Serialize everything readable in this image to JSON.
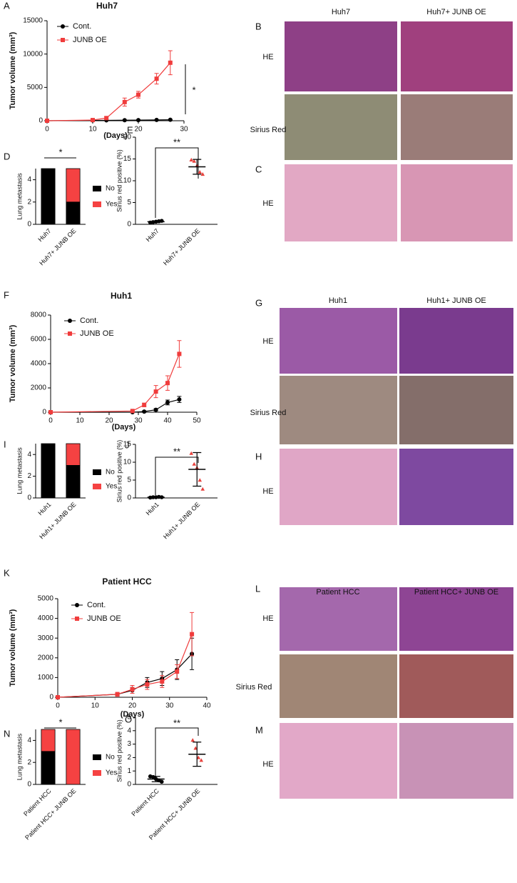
{
  "panel_letters": [
    "A",
    "B",
    "C",
    "D",
    "E",
    "F",
    "G",
    "H",
    "I",
    "J",
    "K",
    "L",
    "M",
    "N",
    "O"
  ],
  "histology": [
    {
      "columns": [
        "Huh7",
        "Huh7+ JUNB OE"
      ],
      "rows": [
        "HE",
        "Sirius Red"
      ]
    },
    {
      "rows": [
        "HE"
      ]
    },
    {
      "columns": [
        "Huh1",
        "Huh1+ JUNB OE"
      ],
      "rows": [
        "HE",
        "Sirius Red"
      ]
    },
    {
      "rows": [
        "HE"
      ]
    },
    {
      "columns": [
        "Patient HCC",
        "Patient HCC+ JUNB OE"
      ],
      "rows": [
        "HE",
        "Sirius Red"
      ]
    },
    {
      "rows": [
        "HE"
      ]
    }
  ],
  "chart_data": [
    {
      "type": "line",
      "title": "Huh7",
      "xlabel": "(Days)",
      "ylabel": "Tumor volume (mm³)",
      "annotation": "*",
      "xlim": [
        0,
        30
      ],
      "xticks": [
        0,
        10,
        20,
        30
      ],
      "ylim": [
        0,
        15000
      ],
      "yticks": [
        0,
        5000,
        10000,
        15000
      ],
      "series": [
        {
          "name": "Cont.",
          "color": "#000000",
          "marker": "circle",
          "x": [
            0,
            10,
            13,
            17,
            20,
            24,
            27
          ],
          "values": [
            0,
            50,
            60,
            80,
            100,
            120,
            150
          ],
          "errors": [
            0,
            20,
            20,
            30,
            30,
            40,
            50
          ]
        },
        {
          "name": "JUNB OE",
          "color": "#f03c3c",
          "marker": "square",
          "x": [
            0,
            10,
            13,
            17,
            20,
            24,
            27
          ],
          "values": [
            0,
            100,
            400,
            2800,
            3900,
            6300,
            8700
          ],
          "errors": [
            0,
            50,
            200,
            600,
            500,
            800,
            1800
          ]
        }
      ]
    },
    {
      "type": "stacked_bar",
      "ylabel": "Lung metastasis",
      "annotation": "*",
      "categories": [
        "Huh7",
        "Huh7+ JUNB OE"
      ],
      "ylim": [
        0,
        5
      ],
      "yticks": [
        0,
        2,
        4
      ],
      "series": [
        {
          "name": "No",
          "color": "#000000",
          "values": [
            5,
            2
          ]
        },
        {
          "name": "Yes",
          "color": "#f54242",
          "values": [
            0,
            3
          ]
        }
      ]
    },
    {
      "type": "dot",
      "ylabel": "Sirius red positive (%)",
      "annotation": "**",
      "categories": [
        "Huh7",
        "Huh7+ JUNB OE"
      ],
      "colors": [
        "#000000",
        "#e8413c"
      ],
      "markers": [
        "circle",
        "triangle"
      ],
      "ylim": [
        0,
        20
      ],
      "yticks": [
        0,
        5,
        10,
        15,
        20
      ],
      "points": [
        [
          0.4,
          0.5,
          0.6,
          0.7,
          0.8
        ],
        [
          14.8,
          14.5,
          13.5,
          12.0,
          11.5
        ]
      ],
      "means": [
        0.6,
        13.2
      ],
      "sd": [
        0.2,
        1.7
      ]
    },
    {
      "type": "line",
      "title": "Huh1",
      "xlabel": "(Days)",
      "ylabel": "Tumor volume (mm³)",
      "xlim": [
        0,
        50
      ],
      "xticks": [
        0,
        10,
        20,
        30,
        40,
        50
      ],
      "ylim": [
        0,
        8000
      ],
      "yticks": [
        0,
        2000,
        4000,
        6000,
        8000
      ],
      "series": [
        {
          "name": "Cont.",
          "color": "#000000",
          "marker": "circle",
          "x": [
            0,
            28,
            32,
            36,
            40,
            44
          ],
          "values": [
            0,
            0,
            50,
            200,
            800,
            1050
          ],
          "errors": [
            0,
            0,
            50,
            100,
            200,
            250
          ]
        },
        {
          "name": "JUNB OE",
          "color": "#f03c3c",
          "marker": "square",
          "x": [
            0,
            28,
            32,
            36,
            40,
            44
          ],
          "values": [
            0,
            100,
            600,
            1700,
            2400,
            4800
          ],
          "errors": [
            0,
            50,
            150,
            500,
            600,
            1100
          ]
        }
      ]
    },
    {
      "type": "stacked_bar",
      "ylabel": "Lung metastasis",
      "categories": [
        "Huh1",
        "Huh1+ JUNB OE"
      ],
      "ylim": [
        0,
        5
      ],
      "yticks": [
        0,
        2,
        4
      ],
      "series": [
        {
          "name": "No",
          "color": "#000000",
          "values": [
            5,
            3
          ]
        },
        {
          "name": "Yes",
          "color": "#f54242",
          "values": [
            0,
            2
          ]
        }
      ]
    },
    {
      "type": "dot",
      "ylabel": "Sirius red positive (%)",
      "annotation": "**",
      "categories": [
        "Huh1",
        "Huh1+ JUNB OE"
      ],
      "colors": [
        "#000000",
        "#e8413c"
      ],
      "markers": [
        "circle",
        "triangle"
      ],
      "ylim": [
        0,
        15
      ],
      "yticks": [
        0,
        5,
        10,
        15
      ],
      "points": [
        [
          0.1,
          0.2,
          0.2,
          0.3,
          0.2
        ],
        [
          12.5,
          9.5,
          8.5,
          5.0,
          2.5
        ]
      ],
      "means": [
        0.2,
        8.0
      ],
      "sd": [
        0.1,
        4.7
      ]
    },
    {
      "type": "line",
      "title": "Patient HCC",
      "xlabel": "(Days)",
      "ylabel": "Tumor volume (mm³)",
      "xlim": [
        0,
        40
      ],
      "xticks": [
        0,
        10,
        20,
        30,
        40
      ],
      "ylim": [
        0,
        5000
      ],
      "yticks": [
        0,
        1000,
        2000,
        3000,
        4000,
        5000
      ],
      "series": [
        {
          "name": "Cont.",
          "color": "#000000",
          "marker": "circle",
          "x": [
            0,
            16,
            20,
            24,
            28,
            32,
            36
          ],
          "values": [
            0,
            150,
            350,
            750,
            950,
            1400,
            2200
          ],
          "errors": [
            0,
            50,
            150,
            250,
            350,
            500,
            800
          ]
        },
        {
          "name": "JUNB OE",
          "color": "#f03c3c",
          "marker": "square",
          "x": [
            0,
            16,
            20,
            24,
            28,
            32,
            36
          ],
          "values": [
            0,
            150,
            400,
            650,
            800,
            1300,
            3200
          ],
          "errors": [
            0,
            100,
            200,
            250,
            300,
            350,
            1100
          ]
        }
      ]
    },
    {
      "type": "stacked_bar",
      "ylabel": "Lung metastasis",
      "annotation": "*",
      "categories": [
        "Patient HCC",
        "Patient HCC+ JUNB OE"
      ],
      "ylim": [
        0,
        5
      ],
      "yticks": [
        0,
        2,
        4
      ],
      "series": [
        {
          "name": "No",
          "color": "#000000",
          "values": [
            3,
            0
          ]
        },
        {
          "name": "Yes",
          "color": "#f54242",
          "values": [
            2,
            5
          ]
        }
      ]
    },
    {
      "type": "dot",
      "ylabel": "Sirius red positive (%)",
      "annotation": "**",
      "categories": [
        "Patient HCC",
        "Patient HCC+ JUNB OE"
      ],
      "colors": [
        "#000000",
        "#e8413c"
      ],
      "markers": [
        "circle",
        "triangle"
      ],
      "ylim": [
        0,
        5
      ],
      "yticks": [
        0,
        1,
        2,
        3,
        4,
        5
      ],
      "points": [
        [
          0.6,
          0.55,
          0.4,
          0.3,
          0.2
        ],
        [
          3.3,
          2.7,
          2.0,
          1.8
        ]
      ],
      "means": [
        0.4,
        2.25
      ],
      "sd": [
        0.2,
        0.9
      ]
    }
  ]
}
